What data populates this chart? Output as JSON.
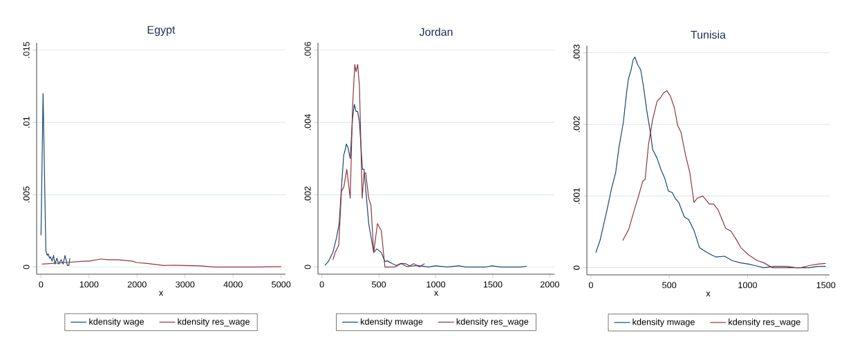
{
  "chart_data": [
    {
      "type": "line",
      "title": "Egypt",
      "xlabel": "x",
      "xlim": [
        -91,
        5091
      ],
      "ylim": [
        -0.0005,
        0.0155
      ],
      "xticks": [
        0,
        1000,
        2000,
        3000,
        4000,
        5000
      ],
      "yticks": [
        {
          "value": 0,
          "label": "0"
        },
        {
          "value": 0.005,
          "label": ".005"
        },
        {
          "value": 0.01,
          "label": ".01"
        },
        {
          "value": 0.015,
          "label": ".015"
        }
      ],
      "grid": "y",
      "legend": "bottom",
      "series": [
        {
          "name": "kdensity wage",
          "color": "#1a476f",
          "x": [
            0,
            43,
            101,
            105,
            130,
            150,
            180,
            200,
            230,
            260,
            290,
            330,
            370,
            420,
            460,
            500,
            550,
            580,
            600
          ],
          "values": [
            0.0022,
            0.012,
            0.0011,
            0.0011,
            0.0008,
            0.0009,
            0.0006,
            0.0007,
            0.0004,
            0.0008,
            0.0002,
            0.0006,
            0.0002,
            0.0005,
            0.0002,
            0.0008,
            0.0001,
            0.0001,
            0.0006
          ]
        },
        {
          "name": "kdensity res_wage",
          "color": "#90353b",
          "x": [
            20,
            500,
            900,
            1000,
            1250,
            1400,
            1600,
            1900,
            2000,
            2200,
            2550,
            2700,
            3000,
            3300,
            3600,
            4000,
            4500,
            5000
          ],
          "values": [
            0.0002,
            0.0003,
            0.0004,
            0.0004,
            0.00055,
            0.0005,
            0.0005,
            0.0004,
            0.0003,
            0.00025,
            0.0001,
            0.00012,
            0.0001,
            8e-05,
            0,
            0,
            0,
            2e-05
          ]
        }
      ]
    },
    {
      "type": "line",
      "title": "Jordan",
      "xlabel": "x",
      "xlim": [
        -34,
        2040
      ],
      "ylim": [
        -0.0002,
        0.0062
      ],
      "xticks": [
        0,
        500,
        1000,
        1500,
        2000
      ],
      "yticks": [
        {
          "value": 0,
          "label": "0"
        },
        {
          "value": 0.002,
          "label": ".002"
        },
        {
          "value": 0.004,
          "label": ".004"
        },
        {
          "value": 0.006,
          "label": ".006"
        }
      ],
      "grid": "y",
      "legend": "bottom",
      "series": [
        {
          "name": "kdensity mwage",
          "color": "#1a476f",
          "x": [
            26,
            57,
            97,
            128,
            152,
            172,
            192,
            202,
            215,
            229,
            249,
            269,
            285,
            300,
            314,
            330,
            356,
            370,
            411,
            455,
            482,
            522,
            553,
            573,
            613,
            654,
            694,
            735,
            775,
            836,
            937,
            998,
            1099,
            1200,
            1261,
            1443,
            1494,
            1565,
            1747,
            1798
          ],
          "values": [
            4e-05,
            0.00015,
            0.0004,
            0.0008,
            0.0012,
            0.0022,
            0.0031,
            0.0032,
            0.0034,
            0.0033,
            0.003,
            0.0041,
            0.0045,
            0.0043,
            0.0043,
            0.004,
            0.0027,
            0.0027,
            0.0012,
            0.0004,
            0.0005,
            0.0004,
            0.00015,
            0.00017,
            0.0001,
            4e-05,
            0.0001,
            9e-05,
            2e-05,
            4e-05,
            0,
            3e-05,
            0,
            3e-05,
            0,
            0,
            3e-05,
            0,
            0,
            2e-05
          ]
        },
        {
          "name": "kdensity res_wage",
          "color": "#90353b",
          "x": [
            97,
            117,
            148,
            172,
            192,
            219,
            249,
            269,
            289,
            300,
            314,
            330,
            354,
            370,
            385,
            411,
            431,
            455,
            488,
            522,
            553,
            644,
            694,
            755,
            806,
            857,
            901
          ],
          "values": [
            0.0002,
            0.0004,
            0.0006,
            0.0021,
            0.0022,
            0.0027,
            0.0019,
            0.0044,
            0.0056,
            0.0054,
            0.0056,
            0.005,
            0.0019,
            0.0026,
            0.0026,
            0.0019,
            0.0017,
            0.0004,
            0.0012,
            0.001,
            0,
            0,
            9e-05,
            0,
            9e-05,
            0,
            9e-05
          ]
        }
      ]
    },
    {
      "type": "line",
      "title": "Tunisia",
      "xlabel": "x",
      "xlim": [
        -26,
        1523
      ],
      "ylim": [
        -0.0001,
        0.0031
      ],
      "xticks": [
        0,
        500,
        1000,
        1500
      ],
      "yticks": [
        {
          "value": 0,
          "label": "0"
        },
        {
          "value": 0.001,
          "label": ".001"
        },
        {
          "value": 0.002,
          "label": ".002"
        },
        {
          "value": 0.003,
          "label": ".003"
        }
      ],
      "grid": "y",
      "legend": "bottom",
      "series": [
        {
          "name": "kdensity mwage",
          "color": "#1a476f",
          "x": [
            31,
            58,
            103,
            131,
            158,
            179,
            207,
            228,
            239,
            256,
            269,
            281,
            297,
            318,
            336,
            356,
            381,
            394,
            422,
            447,
            471,
            494,
            519,
            540,
            561,
            596,
            624,
            658,
            693,
            728,
            769,
            797,
            853,
            901,
            950,
            1006,
            1047,
            1103,
            1172,
            1242,
            1311,
            1394,
            1450,
            1499
          ],
          "values": [
            0.00021,
            0.00038,
            0.00081,
            0.0011,
            0.00133,
            0.00168,
            0.00203,
            0.00245,
            0.00263,
            0.00276,
            0.0029,
            0.00294,
            0.00284,
            0.00276,
            0.00252,
            0.0022,
            0.00187,
            0.00165,
            0.00153,
            0.00137,
            0.00125,
            0.00107,
            0.00105,
            0.00096,
            0.00091,
            0.00071,
            0.00067,
            0.00052,
            0.00028,
            0.00023,
            0.00018,
            0.00015,
            0.00016,
            0.0001,
            7e-05,
            5e-05,
            3e-05,
            0,
            2e-05,
            2e-05,
            0,
            0,
            2e-05,
            2e-05
          ]
        },
        {
          "name": "kdensity res_wage",
          "color": "#90353b",
          "x": [
            203,
            242,
            276,
            304,
            331,
            346,
            367,
            394,
            422,
            443,
            464,
            485,
            506,
            533,
            553,
            575,
            603,
            631,
            658,
            679,
            714,
            756,
            783,
            811,
            860,
            894,
            929,
            957,
            1006,
            1061,
            1103,
            1158,
            1339,
            1394,
            1450,
            1499
          ],
          "values": [
            0.00038,
            0.00054,
            0.0008,
            0.001,
            0.00121,
            0.00123,
            0.00171,
            0.00207,
            0.00232,
            0.00237,
            0.00244,
            0.00247,
            0.0024,
            0.00223,
            0.00199,
            0.00189,
            0.00158,
            0.00133,
            0.00091,
            0.00097,
            0.001,
            0.00089,
            0.00089,
            0.00081,
            0.00055,
            0.00051,
            0.00039,
            0.00028,
            0.00018,
            0.0001,
            7e-05,
            0,
            0,
            3e-05,
            5e-05,
            6e-05
          ]
        }
      ]
    }
  ]
}
